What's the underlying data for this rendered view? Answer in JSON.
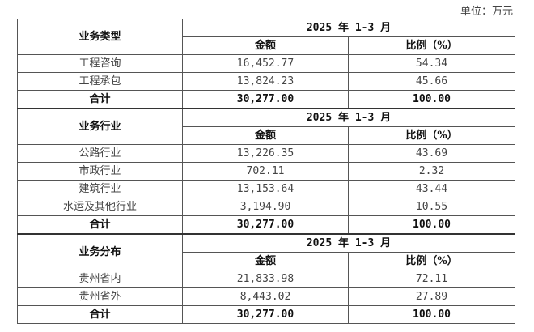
{
  "unit": "单位：万元",
  "sections": [
    {
      "title": "业务类型",
      "period": "2025 年 1-3 月",
      "col_amount": "金额",
      "col_ratio": "比例（%）",
      "rows": [
        {
          "name": "工程咨询",
          "amount": "16,452.77",
          "ratio": "54.34"
        },
        {
          "name": "工程承包",
          "amount": "13,824.23",
          "ratio": "45.66"
        }
      ],
      "total": {
        "name": "合计",
        "amount": "30,277.00",
        "ratio": "100.00"
      }
    },
    {
      "title": "业务行业",
      "period": "2025 年 1-3 月",
      "col_amount": "金额",
      "col_ratio": "比例（%）",
      "rows": [
        {
          "name": "公路行业",
          "amount": "13,226.35",
          "ratio": "43.69"
        },
        {
          "name": "市政行业",
          "amount": "702.11",
          "ratio": "2.32"
        },
        {
          "name": "建筑行业",
          "amount": "13,153.64",
          "ratio": "43.44"
        },
        {
          "name": "水运及其他行业",
          "amount": "3,194.90",
          "ratio": "10.55"
        }
      ],
      "total": {
        "name": "合计",
        "amount": "30,277.00",
        "ratio": "100.00"
      }
    },
    {
      "title": "业务分布",
      "period": "2025 年 1-3 月",
      "col_amount": "金额",
      "col_ratio": "比例（%）",
      "rows": [
        {
          "name": "贵州省内",
          "amount": "21,833.98",
          "ratio": "72.11"
        },
        {
          "name": "贵州省外",
          "amount": "8,443.02",
          "ratio": "27.89"
        }
      ],
      "total": {
        "name": "合计",
        "amount": "30,277.00",
        "ratio": "100.00"
      }
    }
  ]
}
